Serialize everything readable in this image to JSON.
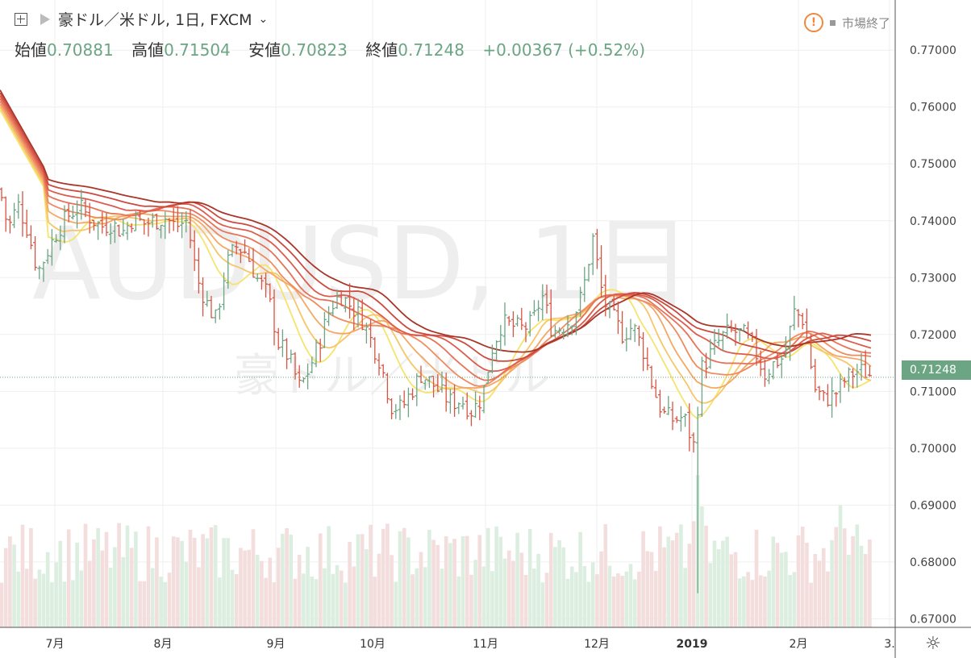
{
  "header": {
    "symbol": "豪ドル／米ドル, 1日, FXCM",
    "open_label": "始値",
    "open": "0.70881",
    "high_label": "高値",
    "high": "0.71504",
    "low_label": "安値",
    "low": "0.70823",
    "close_label": "終値",
    "close": "0.71248",
    "change": "+0.00367 (+0.52%)",
    "market_status": "市場終了"
  },
  "watermark": {
    "main": "AUDUSD, 1日",
    "sub": "豪ドル／米ドル"
  },
  "colors": {
    "up": "#6ba583",
    "down": "#d75442",
    "up_volume": "#dbeee0",
    "down_volume": "#f3dddd"
  },
  "chart_data": {
    "type": "ohlc",
    "price_axis": {
      "ylim": [
        0.6685,
        0.7757
      ],
      "ticks": [
        "0.77000",
        "0.76000",
        "0.75000",
        "0.74000",
        "0.73000",
        "0.72000",
        "0.71000",
        "0.70000",
        "0.69000",
        "0.68000",
        "0.67000"
      ],
      "last_price": "0.71248"
    },
    "time_axis": {
      "labels": [
        "7月",
        "8月",
        "9月",
        "10月",
        "11月",
        "12月",
        "2019",
        "2月",
        "3."
      ]
    },
    "close_trajectory": [
      [
        0,
        0.7455
      ],
      [
        10,
        0.7385
      ],
      [
        22,
        0.743
      ],
      [
        34,
        0.7385
      ],
      [
        47,
        0.731
      ],
      [
        60,
        0.735
      ],
      [
        72,
        0.7385
      ],
      [
        85,
        0.741
      ],
      [
        98,
        0.7425
      ],
      [
        112,
        0.7405
      ],
      [
        125,
        0.739
      ],
      [
        138,
        0.7395
      ],
      [
        152,
        0.738
      ],
      [
        165,
        0.7405
      ],
      [
        178,
        0.7395
      ],
      [
        192,
        0.74
      ],
      [
        205,
        0.7405
      ],
      [
        218,
        0.739
      ],
      [
        232,
        0.74
      ],
      [
        245,
        0.7295
      ],
      [
        258,
        0.725
      ],
      [
        268,
        0.7225
      ],
      [
        280,
        0.732
      ],
      [
        292,
        0.7355
      ],
      [
        305,
        0.7345
      ],
      [
        318,
        0.73
      ],
      [
        332,
        0.727
      ],
      [
        345,
        0.7185
      ],
      [
        358,
        0.716
      ],
      [
        372,
        0.7105
      ],
      [
        385,
        0.7145
      ],
      [
        398,
        0.7195
      ],
      [
        410,
        0.725
      ],
      [
        422,
        0.727
      ],
      [
        435,
        0.725
      ],
      [
        448,
        0.723
      ],
      [
        460,
        0.719
      ],
      [
        472,
        0.715
      ],
      [
        485,
        0.7075
      ],
      [
        498,
        0.707
      ],
      [
        510,
        0.71
      ],
      [
        522,
        0.713
      ],
      [
        535,
        0.7115
      ],
      [
        548,
        0.7095
      ],
      [
        560,
        0.708
      ],
      [
        572,
        0.7085
      ],
      [
        585,
        0.7065
      ],
      [
        598,
        0.709
      ],
      [
        610,
        0.7175
      ],
      [
        622,
        0.722
      ],
      [
        635,
        0.7215
      ],
      [
        648,
        0.721
      ],
      [
        660,
        0.722
      ],
      [
        672,
        0.727
      ],
      [
        685,
        0.7205
      ],
      [
        698,
        0.7215
      ],
      [
        710,
        0.723
      ],
      [
        722,
        0.727
      ],
      [
        735,
        0.737
      ],
      [
        748,
        0.726
      ],
      [
        760,
        0.723
      ],
      [
        772,
        0.72
      ],
      [
        785,
        0.7215
      ],
      [
        798,
        0.717
      ],
      [
        810,
        0.7105
      ],
      [
        822,
        0.706
      ],
      [
        835,
        0.705
      ],
      [
        848,
        0.7055
      ],
      [
        860,
        0.7005
      ],
      [
        870,
        0.714
      ],
      [
        885,
        0.7175
      ],
      [
        898,
        0.72
      ],
      [
        910,
        0.7205
      ],
      [
        922,
        0.72
      ],
      [
        935,
        0.7175
      ],
      [
        948,
        0.713
      ],
      [
        960,
        0.715
      ],
      [
        972,
        0.716
      ],
      [
        985,
        0.724
      ],
      [
        997,
        0.7225
      ],
      [
        1010,
        0.7105
      ],
      [
        1022,
        0.7085
      ],
      [
        1035,
        0.7095
      ],
      [
        1048,
        0.712
      ],
      [
        1060,
        0.7135
      ],
      [
        1072,
        0.7135
      ],
      [
        1083,
        0.7125
      ]
    ],
    "moving_averages": [
      {
        "start": 0.7595,
        "color": "#f6e36e"
      },
      {
        "start": 0.76,
        "color": "#f7c56a"
      },
      {
        "start": 0.7605,
        "color": "#f3a866"
      },
      {
        "start": 0.761,
        "color": "#ee8c60"
      },
      {
        "start": 0.7615,
        "color": "#e67359"
      },
      {
        "start": 0.762,
        "color": "#dc5d4d"
      },
      {
        "start": 0.7625,
        "color": "#cd4a3f"
      },
      {
        "start": 0.763,
        "color": "#a93628"
      }
    ]
  }
}
